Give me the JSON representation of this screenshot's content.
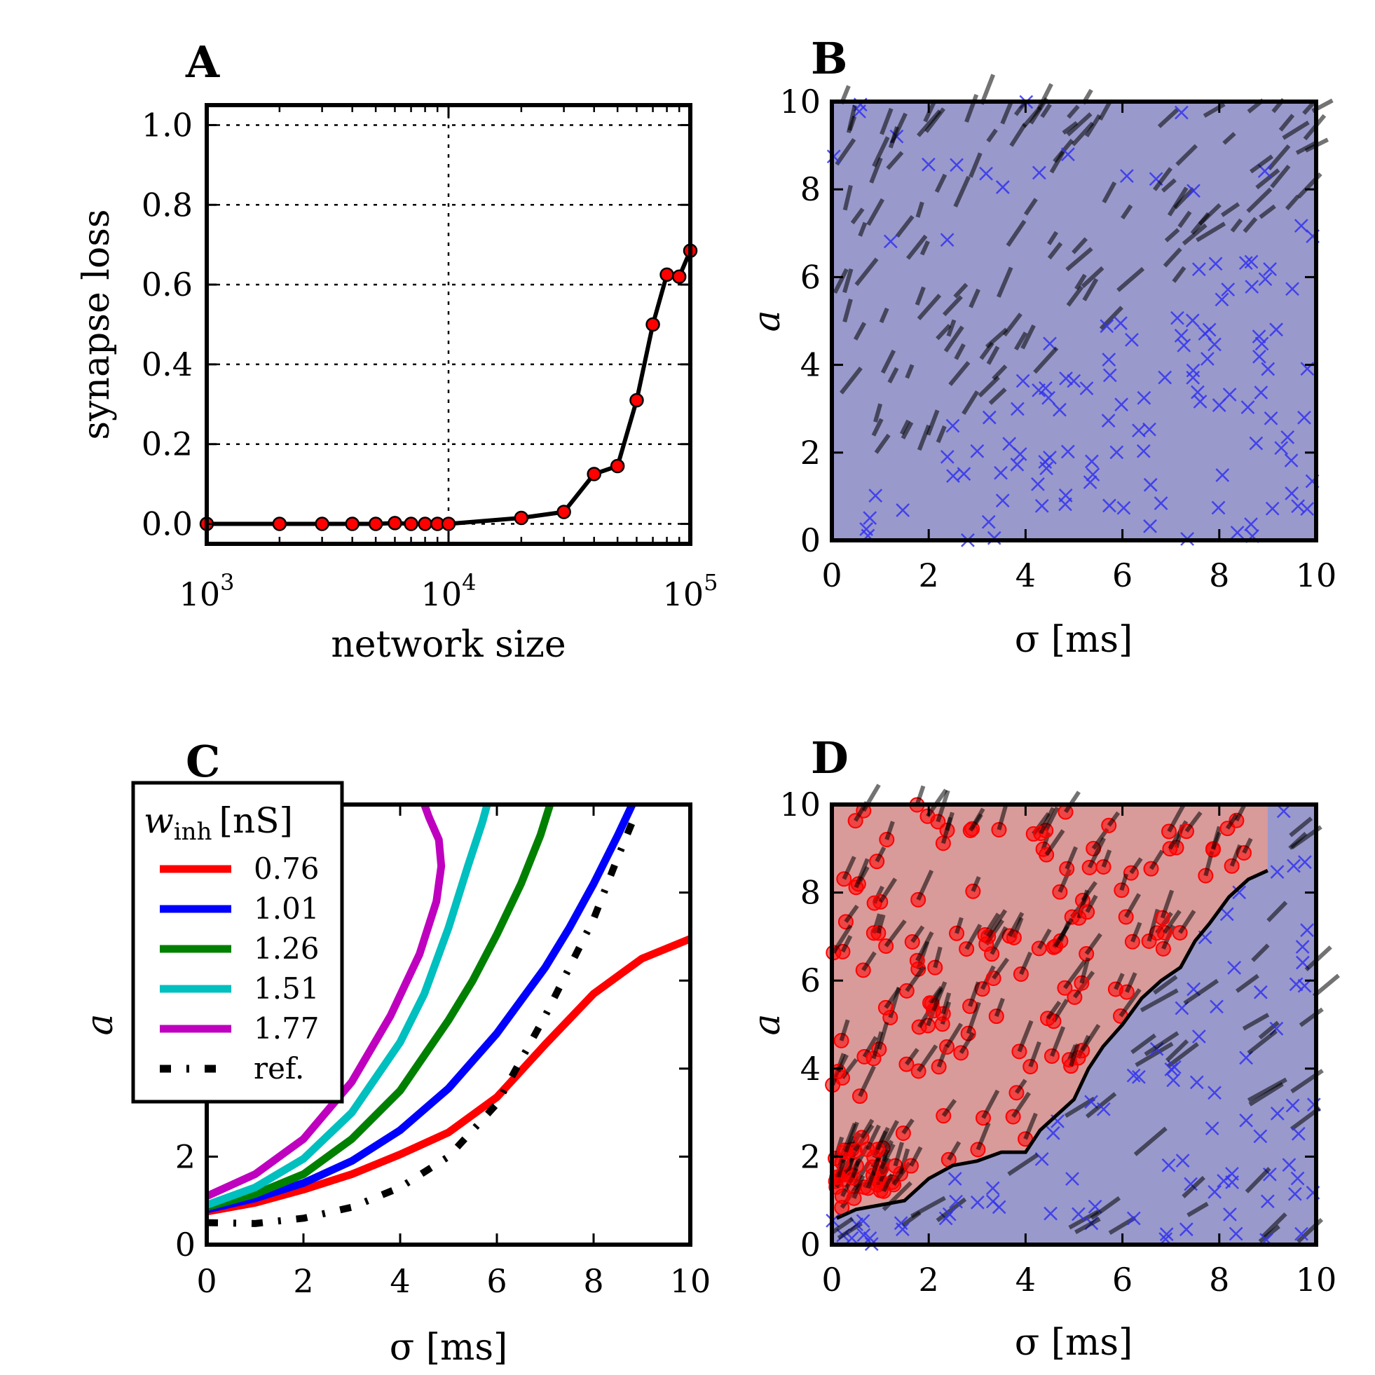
{
  "chart_data": [
    {
      "panel": "A",
      "type": "line",
      "xscale": "log",
      "xlabel": "network size",
      "ylabel": "synapse loss",
      "xlim": [
        1000,
        100000
      ],
      "ylim": [
        -0.05,
        1.05
      ],
      "xticks": [
        {
          "value": 1000,
          "base": "10",
          "exp": "3"
        },
        {
          "value": 10000,
          "base": "10",
          "exp": "4"
        },
        {
          "value": 100000,
          "base": "10",
          "exp": "5"
        }
      ],
      "yticks": [
        "0.0",
        "0.2",
        "0.4",
        "0.6",
        "0.8",
        "1.0"
      ],
      "grid": true,
      "series": [
        {
          "name": "synapse loss",
          "color": "#000000",
          "marker_color": "#ff0000",
          "x": [
            1000,
            2000,
            3000,
            4000,
            5000,
            6000,
            7000,
            8000,
            9000,
            10000,
            20000,
            30000,
            40000,
            50000,
            60000,
            70000,
            80000,
            90000,
            100000
          ],
          "y": [
            0.0,
            0.0,
            0.0,
            0.0,
            0.0,
            0.002,
            0.0,
            0.0,
            0.0,
            0.0,
            0.015,
            0.03,
            0.125,
            0.145,
            0.31,
            0.5,
            0.625,
            0.62,
            0.685
          ]
        }
      ]
    },
    {
      "panel": "B",
      "type": "scatter",
      "xlabel": "σ [ms]",
      "ylabel": "a",
      "xlim": [
        0,
        10
      ],
      "ylim": [
        0,
        10
      ],
      "xticks": [
        "0",
        "2",
        "4",
        "6",
        "8",
        "10"
      ],
      "yticks": [
        "0",
        "2",
        "4",
        "6",
        "8",
        "10"
      ],
      "background": "#9999cc",
      "marker": "x",
      "marker_color": "#3333ee",
      "segment_color": "#000000"
    },
    {
      "panel": "C",
      "type": "line",
      "xlabel": "σ [ms]",
      "ylabel": "a",
      "xlim": [
        0,
        10
      ],
      "ylim": [
        0,
        10
      ],
      "xticks": [
        "0",
        "2",
        "4",
        "6",
        "8",
        "10"
      ],
      "yticks": [
        "0",
        "2"
      ],
      "legend": {
        "title_main": "w",
        "title_sub": "inh",
        "title_unit": "[nS]",
        "position": "top-left"
      },
      "series": [
        {
          "name": "0.76",
          "color": "#ff0000",
          "x": [
            0,
            1,
            2,
            3,
            4,
            5,
            6,
            7,
            8,
            9,
            10
          ],
          "y": [
            0.75,
            0.95,
            1.25,
            1.6,
            2.05,
            2.55,
            3.35,
            4.55,
            5.7,
            6.5,
            6.95
          ]
        },
        {
          "name": "1.01",
          "color": "#0000ff",
          "x": [
            0,
            1,
            2,
            3,
            4,
            5,
            6,
            7,
            7.5,
            8,
            8.5,
            8.8
          ],
          "y": [
            0.8,
            1.05,
            1.4,
            1.9,
            2.6,
            3.55,
            4.8,
            6.3,
            7.2,
            8.2,
            9.3,
            10.0
          ]
        },
        {
          "name": "1.26",
          "color": "#008000",
          "x": [
            0,
            1,
            2,
            3,
            4,
            5,
            5.5,
            6,
            6.5,
            6.9,
            7.1
          ],
          "y": [
            0.85,
            1.15,
            1.6,
            2.4,
            3.5,
            5.1,
            6.0,
            7.05,
            8.2,
            9.3,
            10.0
          ]
        },
        {
          "name": "1.51",
          "color": "#00bfbf",
          "x": [
            0,
            1,
            2,
            3,
            4,
            4.5,
            5,
            5.4,
            5.7,
            5.8
          ],
          "y": [
            0.9,
            1.3,
            1.95,
            3.0,
            4.6,
            5.7,
            7.2,
            8.6,
            9.6,
            10.0
          ]
        },
        {
          "name": "1.77",
          "color": "#bf00bf",
          "x": [
            0,
            1,
            2,
            3,
            3.8,
            4.4,
            4.75,
            4.85,
            4.8,
            4.6,
            4.5
          ],
          "y": [
            1.1,
            1.6,
            2.4,
            3.7,
            5.2,
            6.6,
            7.8,
            8.6,
            9.2,
            9.7,
            10.0
          ]
        },
        {
          "name": "ref.",
          "color": "#000000",
          "dashed": true,
          "x": [
            0,
            1,
            2,
            3,
            4,
            5,
            6,
            7,
            8,
            8.5,
            8.8
          ],
          "y": [
            0.5,
            0.48,
            0.6,
            0.85,
            1.3,
            2.0,
            3.2,
            5.2,
            7.4,
            8.8,
            9.6
          ]
        }
      ]
    },
    {
      "panel": "D",
      "type": "scatter",
      "xlabel": "σ [ms]",
      "ylabel": "a",
      "xlim": [
        0,
        10
      ],
      "ylim": [
        0,
        10
      ],
      "xticks": [
        "0",
        "2",
        "4",
        "6",
        "8",
        "10"
      ],
      "yticks": [
        "0",
        "2",
        "4",
        "6",
        "8",
        "10"
      ],
      "region_colors": {
        "upper": "#d99a9a",
        "lower": "#9999cc"
      },
      "boundary_color": "#000000",
      "marker_colors": {
        "upper": "#ff0000",
        "lower": "#3333ee"
      },
      "boundary": {
        "x": [
          0.1,
          0.5,
          1.0,
          1.5,
          2.0,
          2.5,
          3.0,
          3.5,
          4.0,
          4.3,
          4.6,
          5.0,
          5.3,
          5.6,
          6.0,
          6.4,
          6.8,
          7.2,
          7.5,
          7.8,
          8.2,
          8.6,
          9.0
        ],
        "y": [
          0.6,
          0.8,
          0.9,
          1.0,
          1.5,
          1.8,
          1.9,
          2.1,
          2.1,
          2.6,
          2.9,
          3.3,
          4.0,
          4.5,
          5.0,
          5.6,
          6.0,
          6.3,
          6.9,
          7.3,
          7.9,
          8.3,
          8.5
        ]
      }
    }
  ],
  "panels": {
    "A": {
      "letter": "A",
      "xlabel": "network size",
      "ylabel": "synapse loss"
    },
    "B": {
      "letter": "B",
      "xlabel": "σ [ms]",
      "ylabel": "a"
    },
    "C": {
      "letter": "C",
      "xlabel": "σ [ms]",
      "ylabel": "a",
      "legend_title_main": "w",
      "legend_title_sub": "inh",
      "legend_title_unit": "[nS]"
    },
    "D": {
      "letter": "D",
      "xlabel": "σ [ms]",
      "ylabel": "a"
    }
  }
}
